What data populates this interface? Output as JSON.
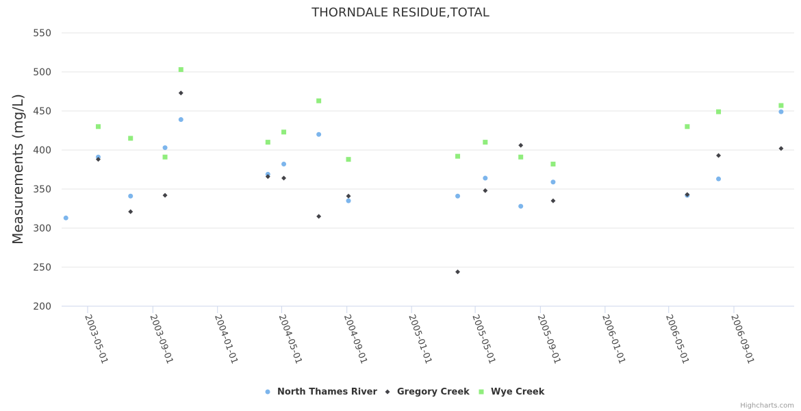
{
  "chart_data": {
    "type": "scatter",
    "title": "THORNDALE RESIDUE,TOTAL",
    "ylabel": "Measurements (mg/L)",
    "xlabel": "",
    "ylim": [
      200,
      550
    ],
    "yticks": [
      200,
      250,
      300,
      350,
      400,
      450,
      500,
      550
    ],
    "xticks": [
      "2003-05-01",
      "2003-09-01",
      "2004-01-01",
      "2004-05-01",
      "2004-09-01",
      "2005-01-01",
      "2005-05-01",
      "2005-09-01",
      "2006-01-01",
      "2006-05-01",
      "2006-09-01"
    ],
    "grid": true,
    "legend_position": "bottom",
    "series": [
      {
        "name": "North Thames River",
        "color": "#7cb5ec",
        "marker": "circle",
        "points": [
          {
            "x": "2003-03-21",
            "y": 313
          },
          {
            "x": "2003-05-21",
            "y": 391
          },
          {
            "x": "2003-07-21",
            "y": 341
          },
          {
            "x": "2003-09-24",
            "y": 403
          },
          {
            "x": "2003-10-24",
            "y": 439
          },
          {
            "x": "2004-04-05",
            "y": 369
          },
          {
            "x": "2004-05-05",
            "y": 382
          },
          {
            "x": "2004-07-10",
            "y": 420
          },
          {
            "x": "2004-09-04",
            "y": 335
          },
          {
            "x": "2005-03-29",
            "y": 341
          },
          {
            "x": "2005-05-20",
            "y": 364
          },
          {
            "x": "2005-07-26",
            "y": 328
          },
          {
            "x": "2005-09-25",
            "y": 359
          },
          {
            "x": "2006-06-05",
            "y": 342
          },
          {
            "x": "2006-08-03",
            "y": 363
          },
          {
            "x": "2006-11-29",
            "y": 449
          }
        ]
      },
      {
        "name": "Gregory Creek",
        "color": "#434348",
        "marker": "diamond",
        "points": [
          {
            "x": "2003-05-21",
            "y": 388
          },
          {
            "x": "2003-07-21",
            "y": 321
          },
          {
            "x": "2003-09-24",
            "y": 342
          },
          {
            "x": "2003-10-24",
            "y": 473
          },
          {
            "x": "2004-04-05",
            "y": 366
          },
          {
            "x": "2004-05-05",
            "y": 364
          },
          {
            "x": "2004-07-10",
            "y": 315
          },
          {
            "x": "2004-09-04",
            "y": 341
          },
          {
            "x": "2005-03-29",
            "y": 244
          },
          {
            "x": "2005-05-20",
            "y": 348
          },
          {
            "x": "2005-07-26",
            "y": 406
          },
          {
            "x": "2005-09-25",
            "y": 335
          },
          {
            "x": "2006-06-05",
            "y": 343
          },
          {
            "x": "2006-08-03",
            "y": 393
          },
          {
            "x": "2006-11-29",
            "y": 402
          }
        ]
      },
      {
        "name": "Wye Creek",
        "color": "#90ed7d",
        "marker": "square",
        "points": [
          {
            "x": "2003-05-21",
            "y": 430
          },
          {
            "x": "2003-07-21",
            "y": 415
          },
          {
            "x": "2003-09-24",
            "y": 391
          },
          {
            "x": "2003-10-24",
            "y": 503
          },
          {
            "x": "2004-04-05",
            "y": 410
          },
          {
            "x": "2004-05-05",
            "y": 423
          },
          {
            "x": "2004-07-10",
            "y": 463
          },
          {
            "x": "2004-09-04",
            "y": 388
          },
          {
            "x": "2005-03-29",
            "y": 392
          },
          {
            "x": "2005-05-20",
            "y": 410
          },
          {
            "x": "2005-07-26",
            "y": 391
          },
          {
            "x": "2005-09-25",
            "y": 382
          },
          {
            "x": "2006-06-05",
            "y": 430
          },
          {
            "x": "2006-08-03",
            "y": 449
          },
          {
            "x": "2006-11-29",
            "y": 457
          }
        ]
      }
    ]
  },
  "credits": "Highcharts.com"
}
